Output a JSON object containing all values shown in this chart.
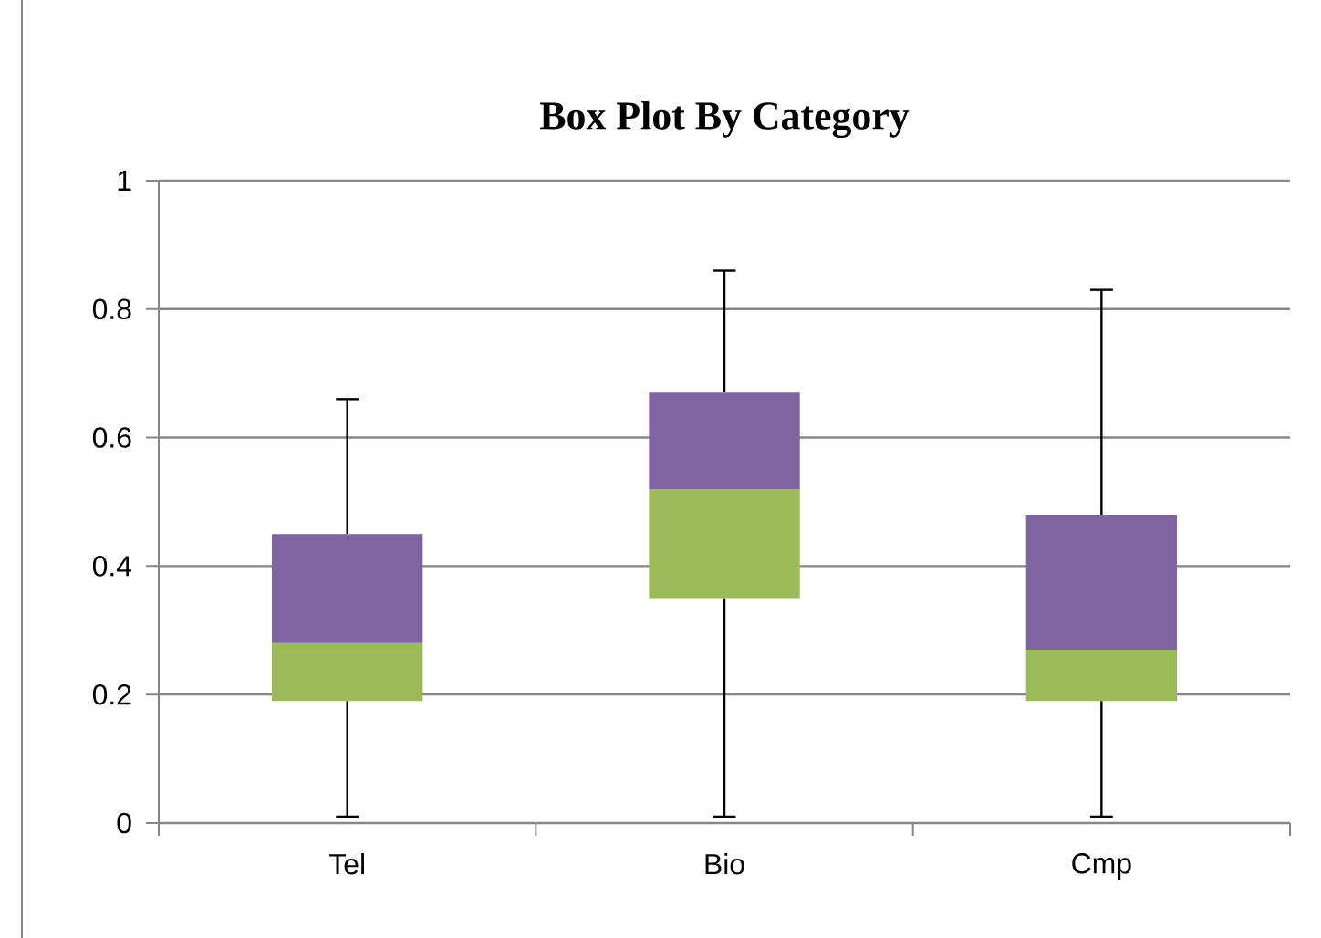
{
  "chart_data": {
    "type": "box",
    "title": "Box Plot By Category",
    "categories": [
      "Tel",
      "Bio",
      "Cmp"
    ],
    "boxes": [
      {
        "low": 0.01,
        "q1": 0.19,
        "median": 0.28,
        "q3": 0.45,
        "high": 0.66
      },
      {
        "low": 0.01,
        "q1": 0.35,
        "median": 0.52,
        "q3": 0.67,
        "high": 0.86
      },
      {
        "low": 0.01,
        "q1": 0.19,
        "median": 0.27,
        "q3": 0.48,
        "high": 0.83
      }
    ],
    "colors": [
      "#9bbb59",
      "#9bbb59",
      "#9bbb59"
    ],
    "color": "#8064a2",
    "ylim": [
      0,
      1
    ],
    "yticks": [
      0,
      0.2,
      0.4,
      0.6,
      0.8,
      1
    ],
    "grid": "y"
  }
}
